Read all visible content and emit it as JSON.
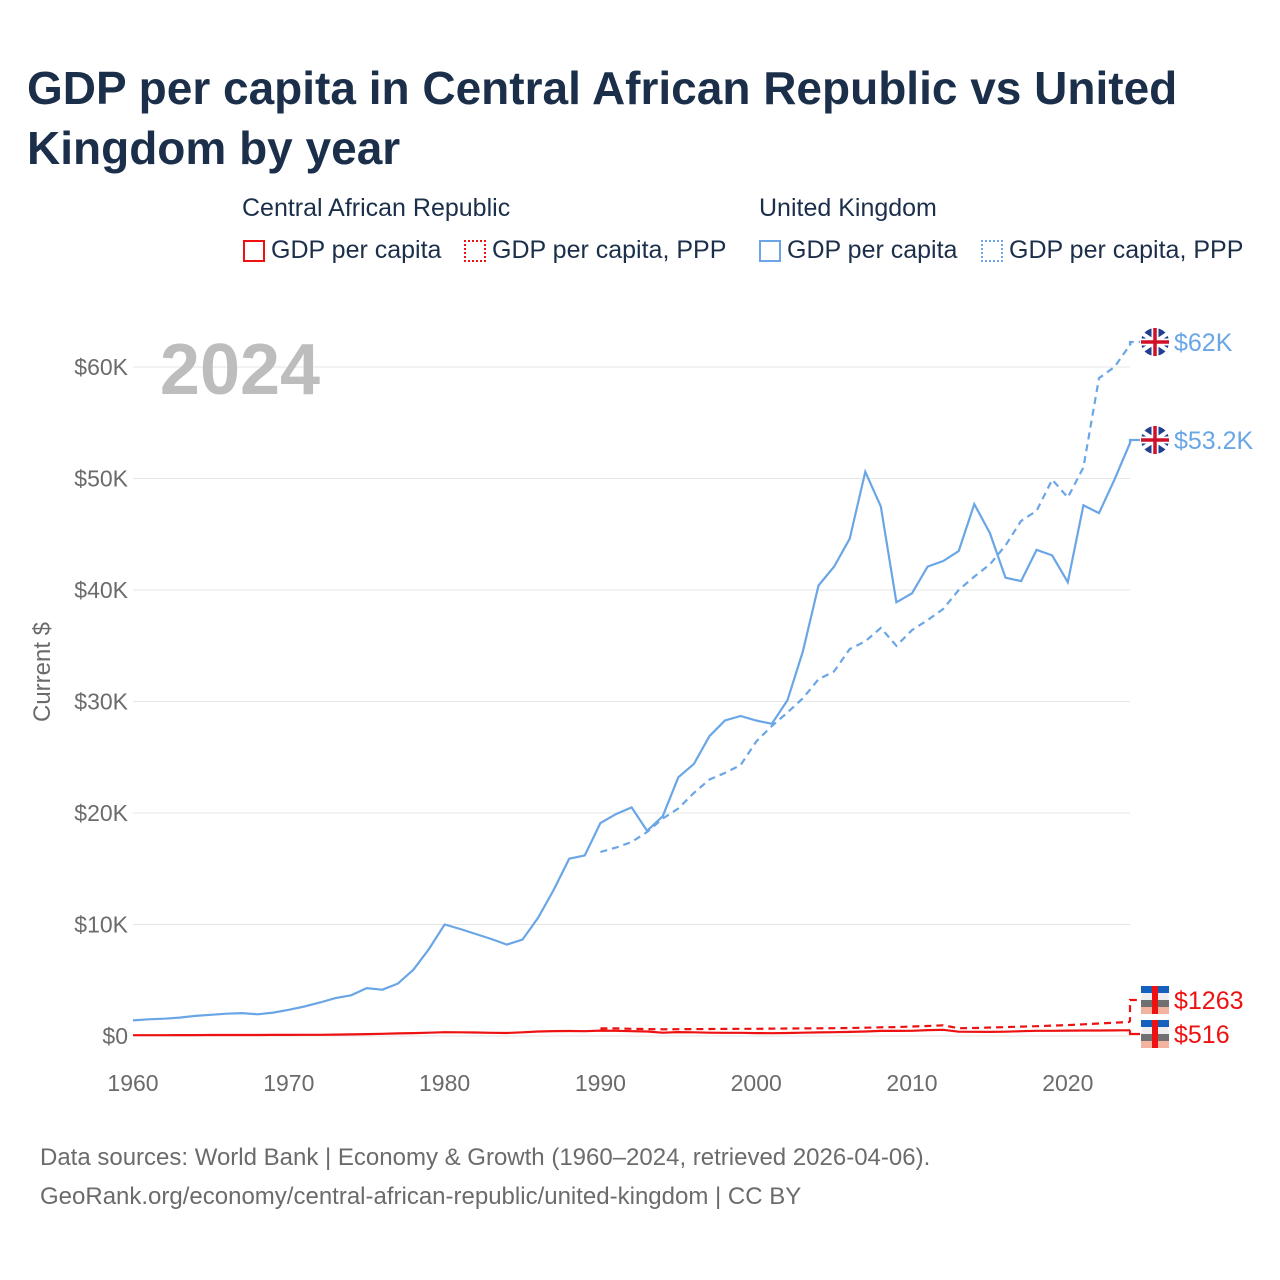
{
  "title": "GDP per capita in Central African Republic vs United Kingdom by year",
  "legend": {
    "groups": [
      {
        "name": "Central African Republic",
        "color": "#ee1111",
        "items": [
          "GDP per capita",
          "GDP per capita, PPP"
        ]
      },
      {
        "name": "United Kingdom",
        "color": "#6aa6e6",
        "items": [
          "GDP per capita",
          "GDP per capita, PPP"
        ]
      }
    ]
  },
  "year_overlay": "2024",
  "footer": [
    "Data sources: World Bank | Economy & Growth (1960–2024, retrieved 2026-04-06).",
    "GeoRank.org/economy/central-african-republic/united-kingdom | CC BY"
  ],
  "chart_data": {
    "type": "line",
    "xlabel": "",
    "ylabel": "Current $",
    "xlim": [
      1960,
      2024
    ],
    "ylim": [
      0,
      62000
    ],
    "x_ticks": [
      1960,
      1970,
      1980,
      1990,
      2000,
      2010,
      2020
    ],
    "y_ticks": [
      {
        "v": 0,
        "label": "$0"
      },
      {
        "v": 10000,
        "label": "$10K"
      },
      {
        "v": 20000,
        "label": "$20K"
      },
      {
        "v": 30000,
        "label": "$30K"
      },
      {
        "v": 40000,
        "label": "$40K"
      },
      {
        "v": 50000,
        "label": "$50K"
      },
      {
        "v": 60000,
        "label": "$60K"
      }
    ],
    "series": [
      {
        "name": "United Kingdom GDP per capita",
        "color": "#6aa6e6",
        "dash": "",
        "start": 1960,
        "end_label": "$53.2K",
        "values": [
          1400,
          1500,
          1550,
          1650,
          1800,
          1900,
          2000,
          2050,
          1950,
          2100,
          2350,
          2650,
          3000,
          3400,
          3650,
          4300,
          4150,
          4700,
          5950,
          7800,
          10000,
          9600,
          9150,
          8700,
          8200,
          8650,
          10600,
          13100,
          15900,
          16200,
          19100,
          19900,
          20500,
          18400,
          19700,
          23200,
          24400,
          26900,
          28300,
          28700,
          28300,
          28000,
          30100,
          34500,
          40400,
          42100,
          44600,
          50600,
          47500,
          38900,
          39700,
          42100,
          42600,
          43500,
          47700,
          45100,
          41100,
          40800,
          43600,
          43100,
          40700,
          47600,
          46900,
          49900,
          53200
        ]
      },
      {
        "name": "United Kingdom GDP per capita, PPP",
        "color": "#6aa6e6",
        "dash": "7 5",
        "start": 1990,
        "end_label": "$62K",
        "values": [
          16500,
          16900,
          17400,
          18300,
          19500,
          20400,
          21800,
          23000,
          23600,
          24300,
          26400,
          27800,
          29000,
          30300,
          32000,
          32700,
          34700,
          35400,
          36600,
          35000,
          36400,
          37300,
          38300,
          40000,
          41200,
          42300,
          44000,
          46200,
          47100,
          49900,
          48300,
          51000,
          59000,
          60000,
          62000
        ]
      },
      {
        "name": "Central African Republic GDP per capita",
        "color": "#ee1111",
        "dash": "",
        "start": 1960,
        "end_label": "$516",
        "values": [
          70,
          72,
          75,
          78,
          82,
          86,
          90,
          92,
          94,
          98,
          100,
          105,
          110,
          125,
          140,
          170,
          200,
          230,
          260,
          300,
          340,
          330,
          310,
          290,
          270,
          330,
          400,
          440,
          450,
          430,
          480,
          470,
          430,
          400,
          300,
          350,
          330,
          300,
          290,
          290,
          260,
          250,
          270,
          300,
          320,
          340,
          370,
          400,
          460,
          460,
          470,
          530,
          560,
          390,
          380,
          370,
          390,
          430,
          470,
          470,
          480,
          490,
          490,
          500,
          516
        ]
      },
      {
        "name": "Central African Republic GDP per capita, PPP",
        "color": "#ee1111",
        "dash": "7 5",
        "start": 1990,
        "end_label": "$1263",
        "values": [
          680,
          680,
          650,
          620,
          600,
          610,
          620,
          630,
          640,
          650,
          650,
          660,
          670,
          680,
          690,
          700,
          720,
          740,
          780,
          800,
          850,
          900,
          960,
          700,
          720,
          760,
          800,
          840,
          880,
          930,
          980,
          1050,
          1120,
          1190,
          1263
        ]
      }
    ]
  }
}
